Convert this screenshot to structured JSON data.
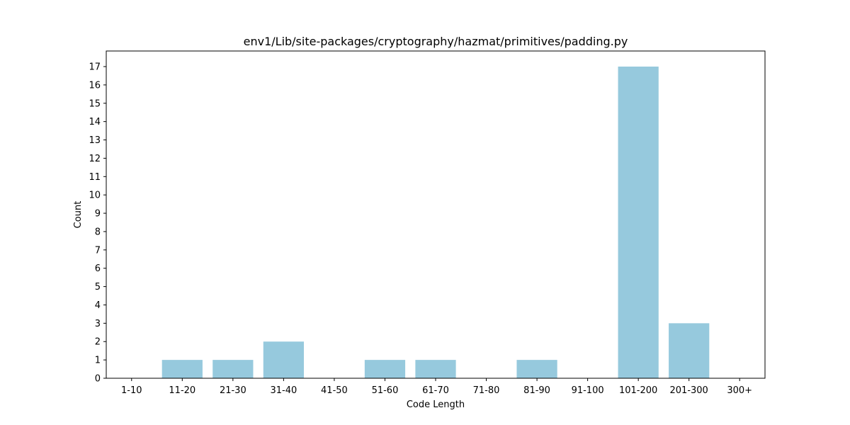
{
  "chart_data": {
    "type": "bar",
    "title": "env1/Lib/site-packages/cryptography/hazmat/primitives/padding.py",
    "xlabel": "Code Length",
    "ylabel": "Count",
    "categories": [
      "1-10",
      "11-20",
      "21-30",
      "31-40",
      "41-50",
      "51-60",
      "61-70",
      "71-80",
      "81-90",
      "91-100",
      "101-200",
      "201-300",
      "300+"
    ],
    "values": [
      0,
      1,
      1,
      2,
      0,
      1,
      1,
      0,
      1,
      0,
      17,
      3,
      0
    ],
    "ylim": [
      0,
      17.85
    ],
    "yticks": [
      0,
      1,
      2,
      3,
      4,
      5,
      6,
      7,
      8,
      9,
      10,
      11,
      12,
      13,
      14,
      15,
      16,
      17
    ],
    "bar_color": "#96c9dd",
    "grid": false,
    "legend": false
  }
}
